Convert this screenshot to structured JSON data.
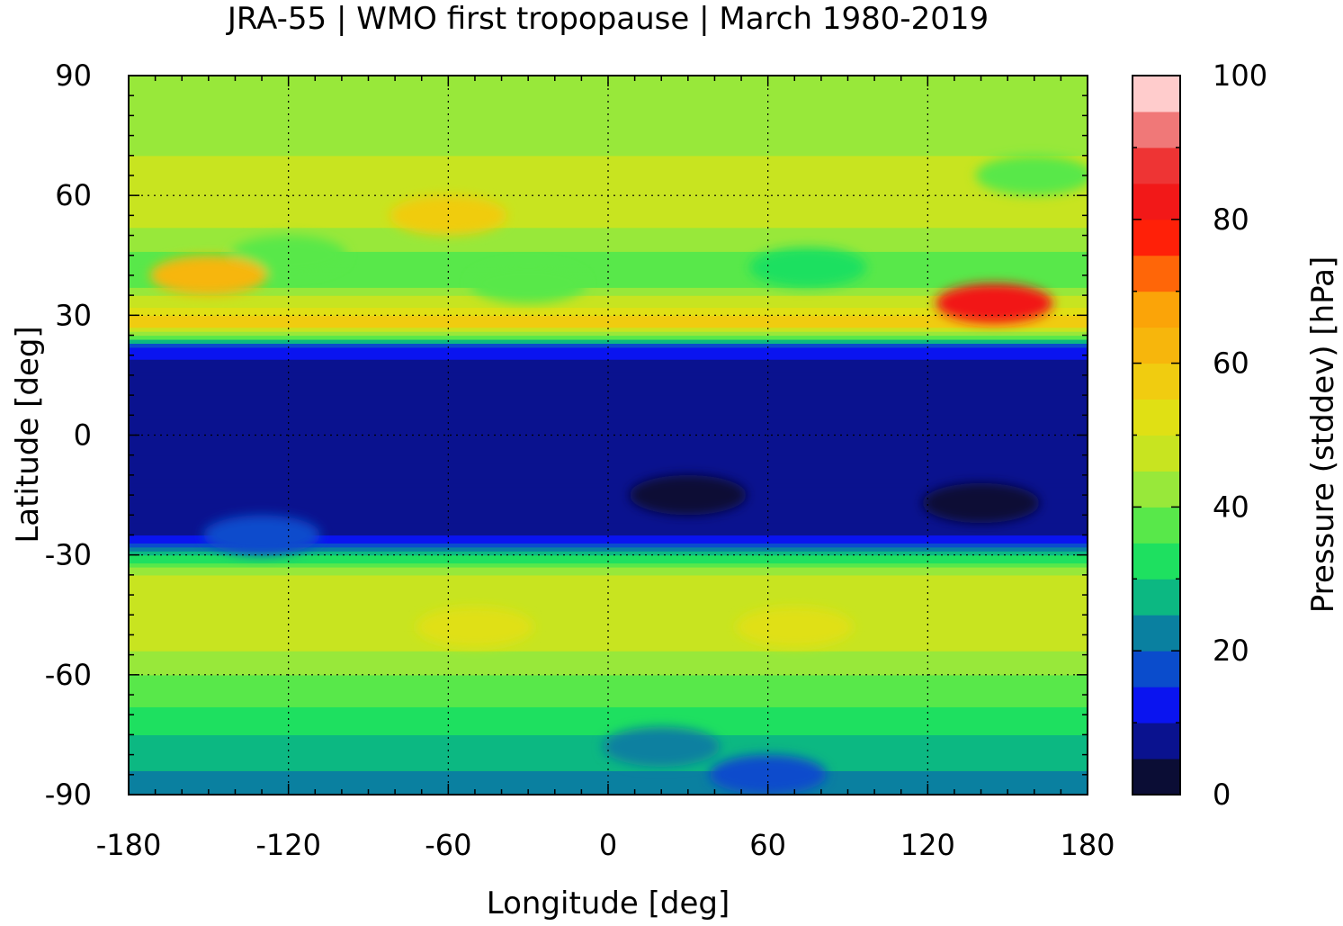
{
  "chart_data": {
    "type": "heatmap",
    "title": "JRA-55 | WMO first tropopause | March 1980-2019",
    "xlabel": "Longitude [deg]",
    "ylabel": "Latitude [deg]",
    "colorbar_label": "Pressure (stddev) [hPa]",
    "xlim": [
      -180,
      180
    ],
    "ylim": [
      -90,
      90
    ],
    "xticks": [
      -180,
      -120,
      -60,
      0,
      60,
      120,
      180
    ],
    "yticks": [
      -90,
      -60,
      -30,
      0,
      30,
      60,
      90
    ],
    "colorbar_range": [
      0,
      100
    ],
    "colorbar_ticks": [
      0,
      20,
      40,
      60,
      80,
      100
    ],
    "grid": true,
    "colormap": [
      {
        "from": 0,
        "to": 5,
        "color": "#0b0d35"
      },
      {
        "from": 5,
        "to": 10,
        "color": "#0a128f"
      },
      {
        "from": 10,
        "to": 15,
        "color": "#0a14f0"
      },
      {
        "from": 15,
        "to": 20,
        "color": "#0a4ccc"
      },
      {
        "from": 20,
        "to": 25,
        "color": "#0a80a0"
      },
      {
        "from": 25,
        "to": 30,
        "color": "#0cb882"
      },
      {
        "from": 30,
        "to": 35,
        "color": "#1ee060"
      },
      {
        "from": 35,
        "to": 40,
        "color": "#58e84a"
      },
      {
        "from": 40,
        "to": 45,
        "color": "#98e83a"
      },
      {
        "from": 45,
        "to": 50,
        "color": "#c8e420"
      },
      {
        "from": 50,
        "to": 55,
        "color": "#e0e014"
      },
      {
        "from": 55,
        "to": 60,
        "color": "#f0cc10"
      },
      {
        "from": 60,
        "to": 65,
        "color": "#f7b60c"
      },
      {
        "from": 65,
        "to": 70,
        "color": "#fba408"
      },
      {
        "from": 70,
        "to": 75,
        "color": "#ff6608"
      },
      {
        "from": 75,
        "to": 80,
        "color": "#ff2008"
      },
      {
        "from": 80,
        "to": 85,
        "color": "#f21818"
      },
      {
        "from": 85,
        "to": 90,
        "color": "#ee3434"
      },
      {
        "from": 90,
        "to": 95,
        "color": "#f07878"
      },
      {
        "from": 95,
        "to": 100,
        "color": "#ffcccc"
      }
    ],
    "zonal_mean_profile": {
      "lat": [
        -90,
        -82,
        -75,
        -68,
        -60,
        -50,
        -42,
        -35,
        -30,
        -27,
        -24,
        -18,
        -12,
        0,
        12,
        18,
        22,
        25,
        28,
        32,
        40,
        50,
        60,
        70,
        80,
        90
      ],
      "values": [
        22,
        26,
        30,
        35,
        40,
        48,
        50,
        46,
        30,
        15,
        8,
        7,
        7,
        7,
        7,
        8,
        15,
        40,
        58,
        50,
        35,
        44,
        48,
        45,
        42,
        42
      ]
    },
    "features": [
      {
        "lon": 145,
        "lat": 33,
        "value": 80
      },
      {
        "lon": 75,
        "lat": 42,
        "value": 30
      },
      {
        "lon": -30,
        "lat": 38,
        "value": 36
      },
      {
        "lon": -120,
        "lat": 45,
        "value": 38
      },
      {
        "lon": -150,
        "lat": 40,
        "value": 62
      },
      {
        "lon": -60,
        "lat": 55,
        "value": 57
      },
      {
        "lon": 160,
        "lat": 65,
        "value": 38
      },
      {
        "lon": 140,
        "lat": -17,
        "value": 3
      },
      {
        "lon": 30,
        "lat": -15,
        "value": 3
      },
      {
        "lon": -130,
        "lat": -25,
        "value": 15
      },
      {
        "lon": -50,
        "lat": -48,
        "value": 52
      },
      {
        "lon": 70,
        "lat": -48,
        "value": 53
      },
      {
        "lon": 60,
        "lat": -85,
        "value": 15
      },
      {
        "lon": 20,
        "lat": -78,
        "value": 20
      }
    ]
  }
}
